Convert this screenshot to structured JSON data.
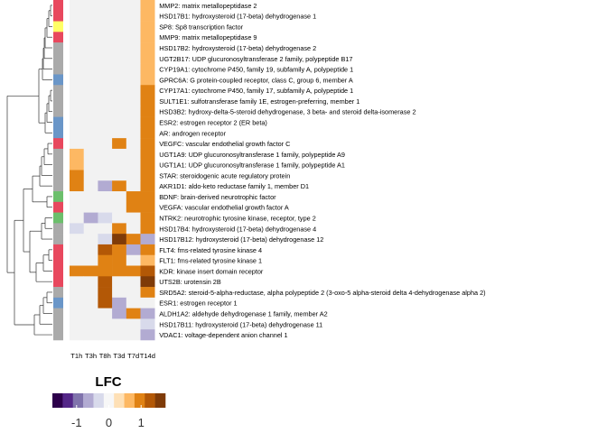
{
  "chart_data": {
    "type": "heatmap",
    "columns": [
      "T1h",
      "T3h",
      "T8h",
      "T3d",
      "T7d",
      "T14d"
    ],
    "rows": [
      "MMP2: matrix metallopeptidase 2",
      "HSD17B1: hydroxysteroid (17-beta) dehydrogenase 1",
      "SP8: Sp8 transcription factor",
      "MMP9: matrix metallopeptidase 9",
      "HSD17B2: hydroxysteroid (17-beta) dehydrogenase 2",
      "UGT2B17: UDP glucuronosyltransferase 2 family, polypeptide B17",
      "CYP19A1: cytochrome P450, family 19, subfamily A, polypeptide 1",
      "GPRC6A: G protein-coupled receptor, class C, group 6, member A",
      "CYP17A1: cytochrome P450, family 17, subfamily A, polypeptide 1",
      "SULT1E1: sulfotransferase family 1E, estrogen-preferring, member 1",
      "HSD3B2: hydroxy-delta-5-steroid dehydrogenase, 3 beta- and steroid delta-isomerase 2",
      "ESR2: estrogen receptor 2 (ER beta)",
      "AR: androgen receptor",
      "VEGFC: vascular endothelial growth factor C",
      "UGT1A9: UDP glucuronosyltransferase 1 family, polypeptide A9",
      "UGT1A1: UDP glucuronosyltransferase 1 family, polypeptide A1",
      "STAR: steroidogenic acute regulatory protein",
      "AKR1D1: aldo-keto reductase family 1, member D1",
      "BDNF: brain-derived neurotrophic factor",
      "VEGFA: vascular endothelial growth factor A",
      "NTRK2: neurotrophic tyrosine kinase, receptor, type 2",
      "HSD17B4: hydroxysteroid (17-beta) dehydrogenase 4",
      "HSD17B12: hydroxysteroid (17-beta) dehydrogenase 12",
      "FLT4: fms-related tyrosine kinase 4",
      "FLT1: fms-related tyrosine kinase 1",
      "KDR: kinase insert domain receptor",
      "UTS2B: urotensin 2B",
      "SRD5A2: steroid-5-alpha-reductase, alpha polypeptide 2 (3-oxo-5 alpha-steroid delta 4-dehydrogenase alpha 2)",
      "ESR1: estrogen receptor 1",
      "ALDH1A2: aldehyde dehydrogenase 1 family, member A2",
      "HSD17B11: hydroxysteroid (17-beta) dehydrogenase 11",
      "VDAC1: voltage-dependent anion channel 1"
    ],
    "values": [
      [
        null,
        null,
        null,
        null,
        null,
        0.6
      ],
      [
        null,
        null,
        null,
        null,
        null,
        0.6
      ],
      [
        null,
        null,
        null,
        null,
        null,
        0.6
      ],
      [
        null,
        null,
        null,
        null,
        null,
        0.6
      ],
      [
        null,
        null,
        null,
        null,
        null,
        0.6
      ],
      [
        null,
        null,
        null,
        null,
        null,
        0.6
      ],
      [
        null,
        null,
        null,
        null,
        null,
        0.6
      ],
      [
        null,
        null,
        null,
        null,
        null,
        0.6
      ],
      [
        null,
        null,
        null,
        null,
        null,
        1.0
      ],
      [
        null,
        null,
        null,
        null,
        null,
        1.0
      ],
      [
        null,
        null,
        null,
        null,
        null,
        1.0
      ],
      [
        null,
        null,
        null,
        null,
        null,
        1.0
      ],
      [
        null,
        null,
        null,
        null,
        null,
        1.0
      ],
      [
        null,
        null,
        null,
        1.0,
        null,
        1.0
      ],
      [
        0.6,
        null,
        null,
        null,
        null,
        1.0
      ],
      [
        0.6,
        null,
        null,
        null,
        null,
        1.0
      ],
      [
        1.0,
        null,
        null,
        null,
        null,
        1.0
      ],
      [
        1.0,
        null,
        -0.7,
        1.0,
        null,
        1.0
      ],
      [
        null,
        null,
        null,
        null,
        1.0,
        1.0
      ],
      [
        null,
        null,
        null,
        null,
        1.0,
        1.0
      ],
      [
        null,
        -0.7,
        -0.3,
        null,
        null,
        1.0
      ],
      [
        -0.3,
        null,
        null,
        1.0,
        null,
        1.0
      ],
      [
        null,
        null,
        -0.3,
        1.6,
        1.0,
        -0.7
      ],
      [
        null,
        null,
        1.3,
        1.0,
        -0.7,
        1.0
      ],
      [
        null,
        null,
        1.0,
        1.0,
        null,
        0.6
      ],
      [
        1.0,
        1.0,
        1.0,
        1.0,
        1.0,
        1.3
      ],
      [
        null,
        null,
        1.3,
        null,
        null,
        1.6
      ],
      [
        null,
        null,
        1.3,
        null,
        null,
        1.0
      ],
      [
        null,
        null,
        1.3,
        -0.7,
        null,
        null
      ],
      [
        null,
        null,
        null,
        -0.7,
        1.0,
        -0.7
      ],
      [
        null,
        null,
        null,
        null,
        null,
        -0.3
      ],
      [
        null,
        null,
        null,
        null,
        null,
        -0.7
      ]
    ],
    "row_annotation_colors": [
      "#e8485e",
      "#e8485e",
      "#ffff66",
      "#e8485e",
      "#aaaaaa",
      "#aaaaaa",
      "#aaaaaa",
      "#6a96c8",
      "#aaaaaa",
      "#aaaaaa",
      "#aaaaaa",
      "#6a96c8",
      "#6a96c8",
      "#e8485e",
      "#aaaaaa",
      "#aaaaaa",
      "#aaaaaa",
      "#aaaaaa",
      "#6cbf6c",
      "#e8485e",
      "#6cbf6c",
      "#aaaaaa",
      "#aaaaaa",
      "#e8485e",
      "#e8485e",
      "#e8485e",
      "#e8485e",
      "#aaaaaa",
      "#6a96c8",
      "#aaaaaa",
      "#aaaaaa",
      "#aaaaaa"
    ],
    "na_color": "#f2f2f2",
    "legend": {
      "title": "LFC",
      "ticks": [
        -1,
        0,
        1
      ],
      "range": [
        -1.75,
        1.75
      ],
      "colors": [
        "#2d004b",
        "#542788",
        "#8073ac",
        "#b2abd2",
        "#d8daeb",
        "#f7f7f7",
        "#fee0b6",
        "#fdb863",
        "#e08214",
        "#b35806",
        "#7f3b08"
      ]
    },
    "dendrogram": "row clustering tree (left)"
  }
}
